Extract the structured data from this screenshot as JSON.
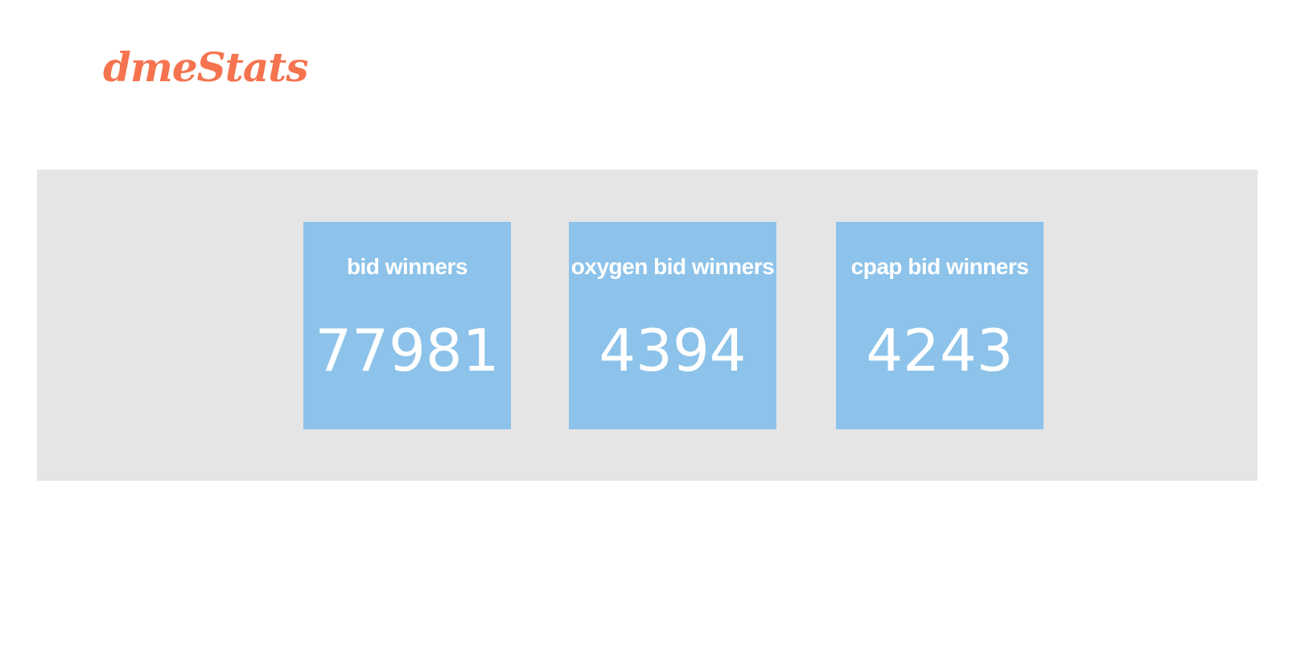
{
  "brand": {
    "name": "dmeStats",
    "color": "#f5734f"
  },
  "colors": {
    "panel_background": "#e5e5e6",
    "card_background": "#8dc3ea",
    "card_text": "#ffffff"
  },
  "stats": [
    {
      "title": "bid winners",
      "value": "77981"
    },
    {
      "title": "oxygen bid winners",
      "value": "4394"
    },
    {
      "title": "cpap bid winners",
      "value": "4243"
    }
  ]
}
